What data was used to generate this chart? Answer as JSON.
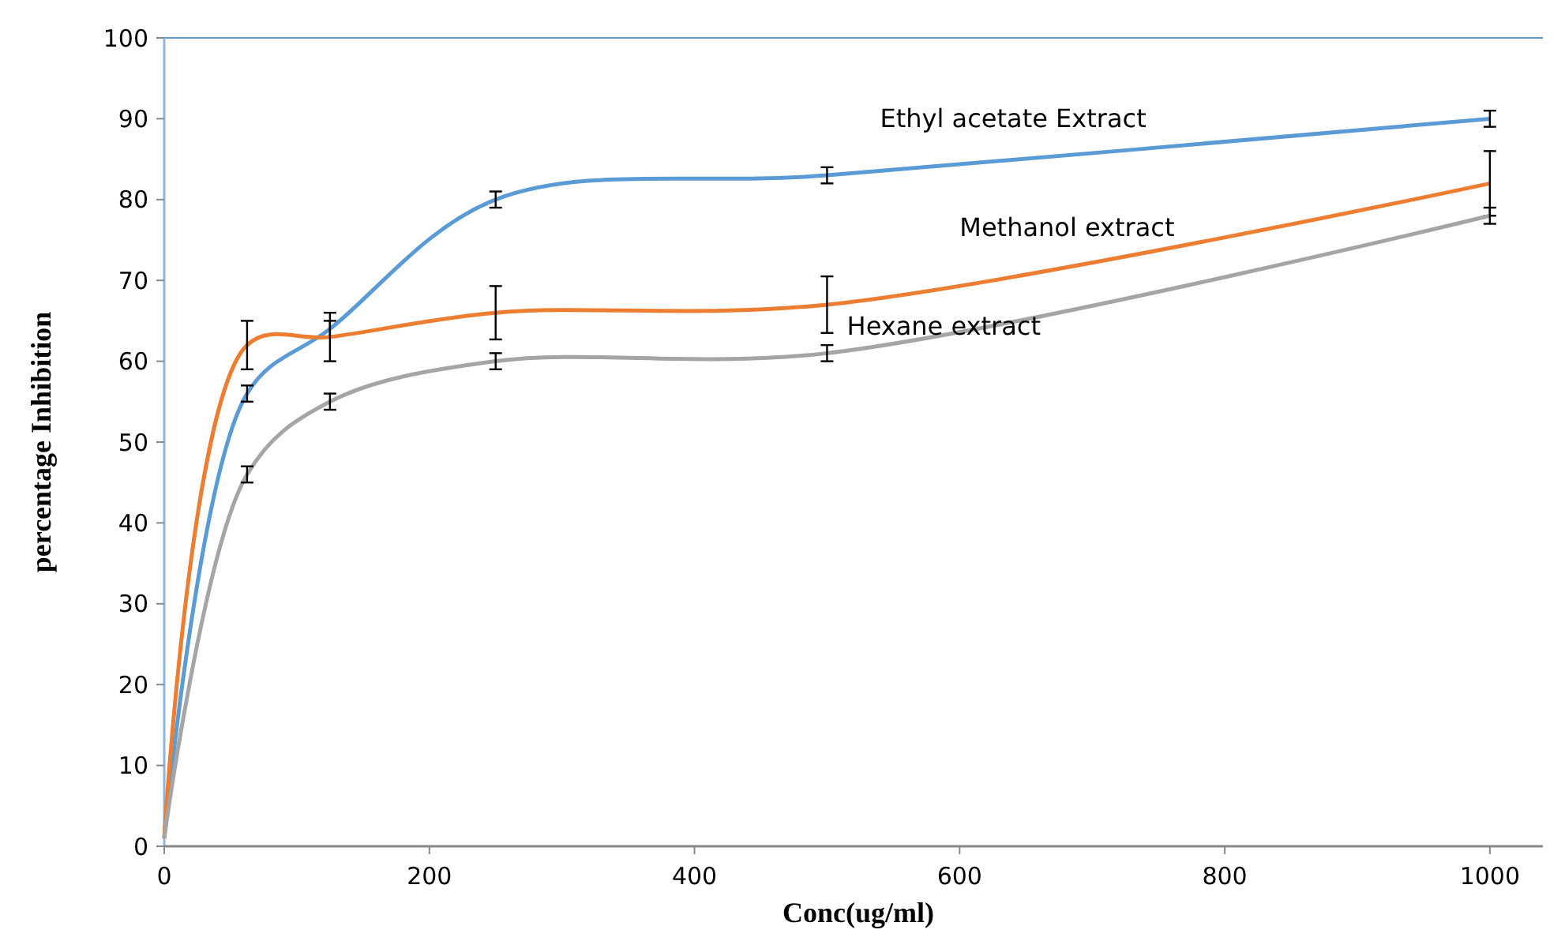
{
  "chart_data": {
    "type": "line",
    "xlabel": "Conc(ug/ml)",
    "ylabel": "percentage Inhibition",
    "x": [
      0,
      62.5,
      125,
      250,
      500,
      1000
    ],
    "series": [
      {
        "name": "Ethyl acetate Extract",
        "color": "#5b9bd5",
        "values": [
          1,
          56,
          64,
          80,
          83,
          90
        ],
        "errors": [
          null,
          1,
          1,
          1,
          1,
          1
        ]
      },
      {
        "name": "Methanol extract",
        "color": "#ed7d31",
        "values": [
          1,
          62,
          63,
          66,
          67,
          82
        ],
        "errors": [
          null,
          3,
          3,
          3.3,
          3.5,
          4
        ]
      },
      {
        "name": "Hexane extract",
        "color": "#a5a5a5",
        "values": [
          1,
          46,
          55,
          60,
          61,
          78
        ],
        "errors": [
          null,
          1,
          1,
          1,
          1,
          1
        ]
      }
    ],
    "xlim": [
      0,
      1040
    ],
    "xticks": [
      0,
      200,
      400,
      600,
      800,
      1000
    ],
    "ylim": [
      0,
      100
    ],
    "yticks": [
      0,
      10,
      20,
      30,
      40,
      50,
      60,
      70,
      80,
      90,
      100
    ],
    "grid": false,
    "marker": "none",
    "line_style": "solid"
  }
}
